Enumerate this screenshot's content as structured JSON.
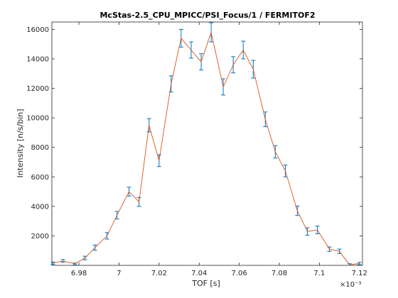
{
  "chart_data": {
    "type": "line",
    "title": "McStas-2.5_CPU_MPICC/PSI_Focus/1 / FERMITOF2",
    "xlabel": "TOF [s]",
    "ylabel": "Intensity [n/s/bin]",
    "x_exponent_label": "×10⁻³",
    "xlim": [
      6.9665,
      7.1215
    ],
    "ylim": [
      0,
      16500
    ],
    "xticks": [
      6.98,
      7.0,
      7.02,
      7.04,
      7.06,
      7.08,
      7.1,
      7.12
    ],
    "xtick_labels": [
      "6.98",
      "7",
      "7.02",
      "7.04",
      "7.06",
      "7.08",
      "7.1",
      "7.12"
    ],
    "yticks": [
      2000,
      4000,
      6000,
      8000,
      10000,
      12000,
      14000,
      16000
    ],
    "ytick_labels": [
      "2000",
      "4000",
      "6000",
      "8000",
      "10000",
      "12000",
      "14000",
      "16000"
    ],
    "grid": false,
    "colors": {
      "line": "#d95319",
      "errorbar": "#0072bd",
      "axes": "#262626"
    },
    "series": [
      {
        "x": [
          6.967,
          6.972,
          6.978,
          6.983,
          6.988,
          6.994,
          6.999,
          7.005,
          7.01,
          7.015,
          7.02,
          7.026,
          7.031,
          7.036,
          7.041,
          7.046,
          7.052,
          7.057,
          7.062,
          7.067,
          7.073,
          7.078,
          7.083,
          7.089,
          7.094,
          7.099,
          7.105,
          7.11,
          7.115,
          7.12
        ],
        "y": [
          150,
          300,
          100,
          500,
          1200,
          2000,
          3400,
          5000,
          4300,
          9500,
          7100,
          12300,
          15400,
          14600,
          13800,
          15800,
          12100,
          13600,
          14600,
          13300,
          9900,
          7700,
          6400,
          3700,
          2300,
          2400,
          1100,
          950,
          50,
          120
        ],
        "err": [
          80,
          90,
          60,
          120,
          180,
          220,
          260,
          300,
          300,
          450,
          400,
          550,
          600,
          550,
          550,
          650,
          550,
          550,
          600,
          600,
          500,
          420,
          400,
          320,
          250,
          260,
          150,
          150,
          60,
          80
        ]
      }
    ]
  }
}
